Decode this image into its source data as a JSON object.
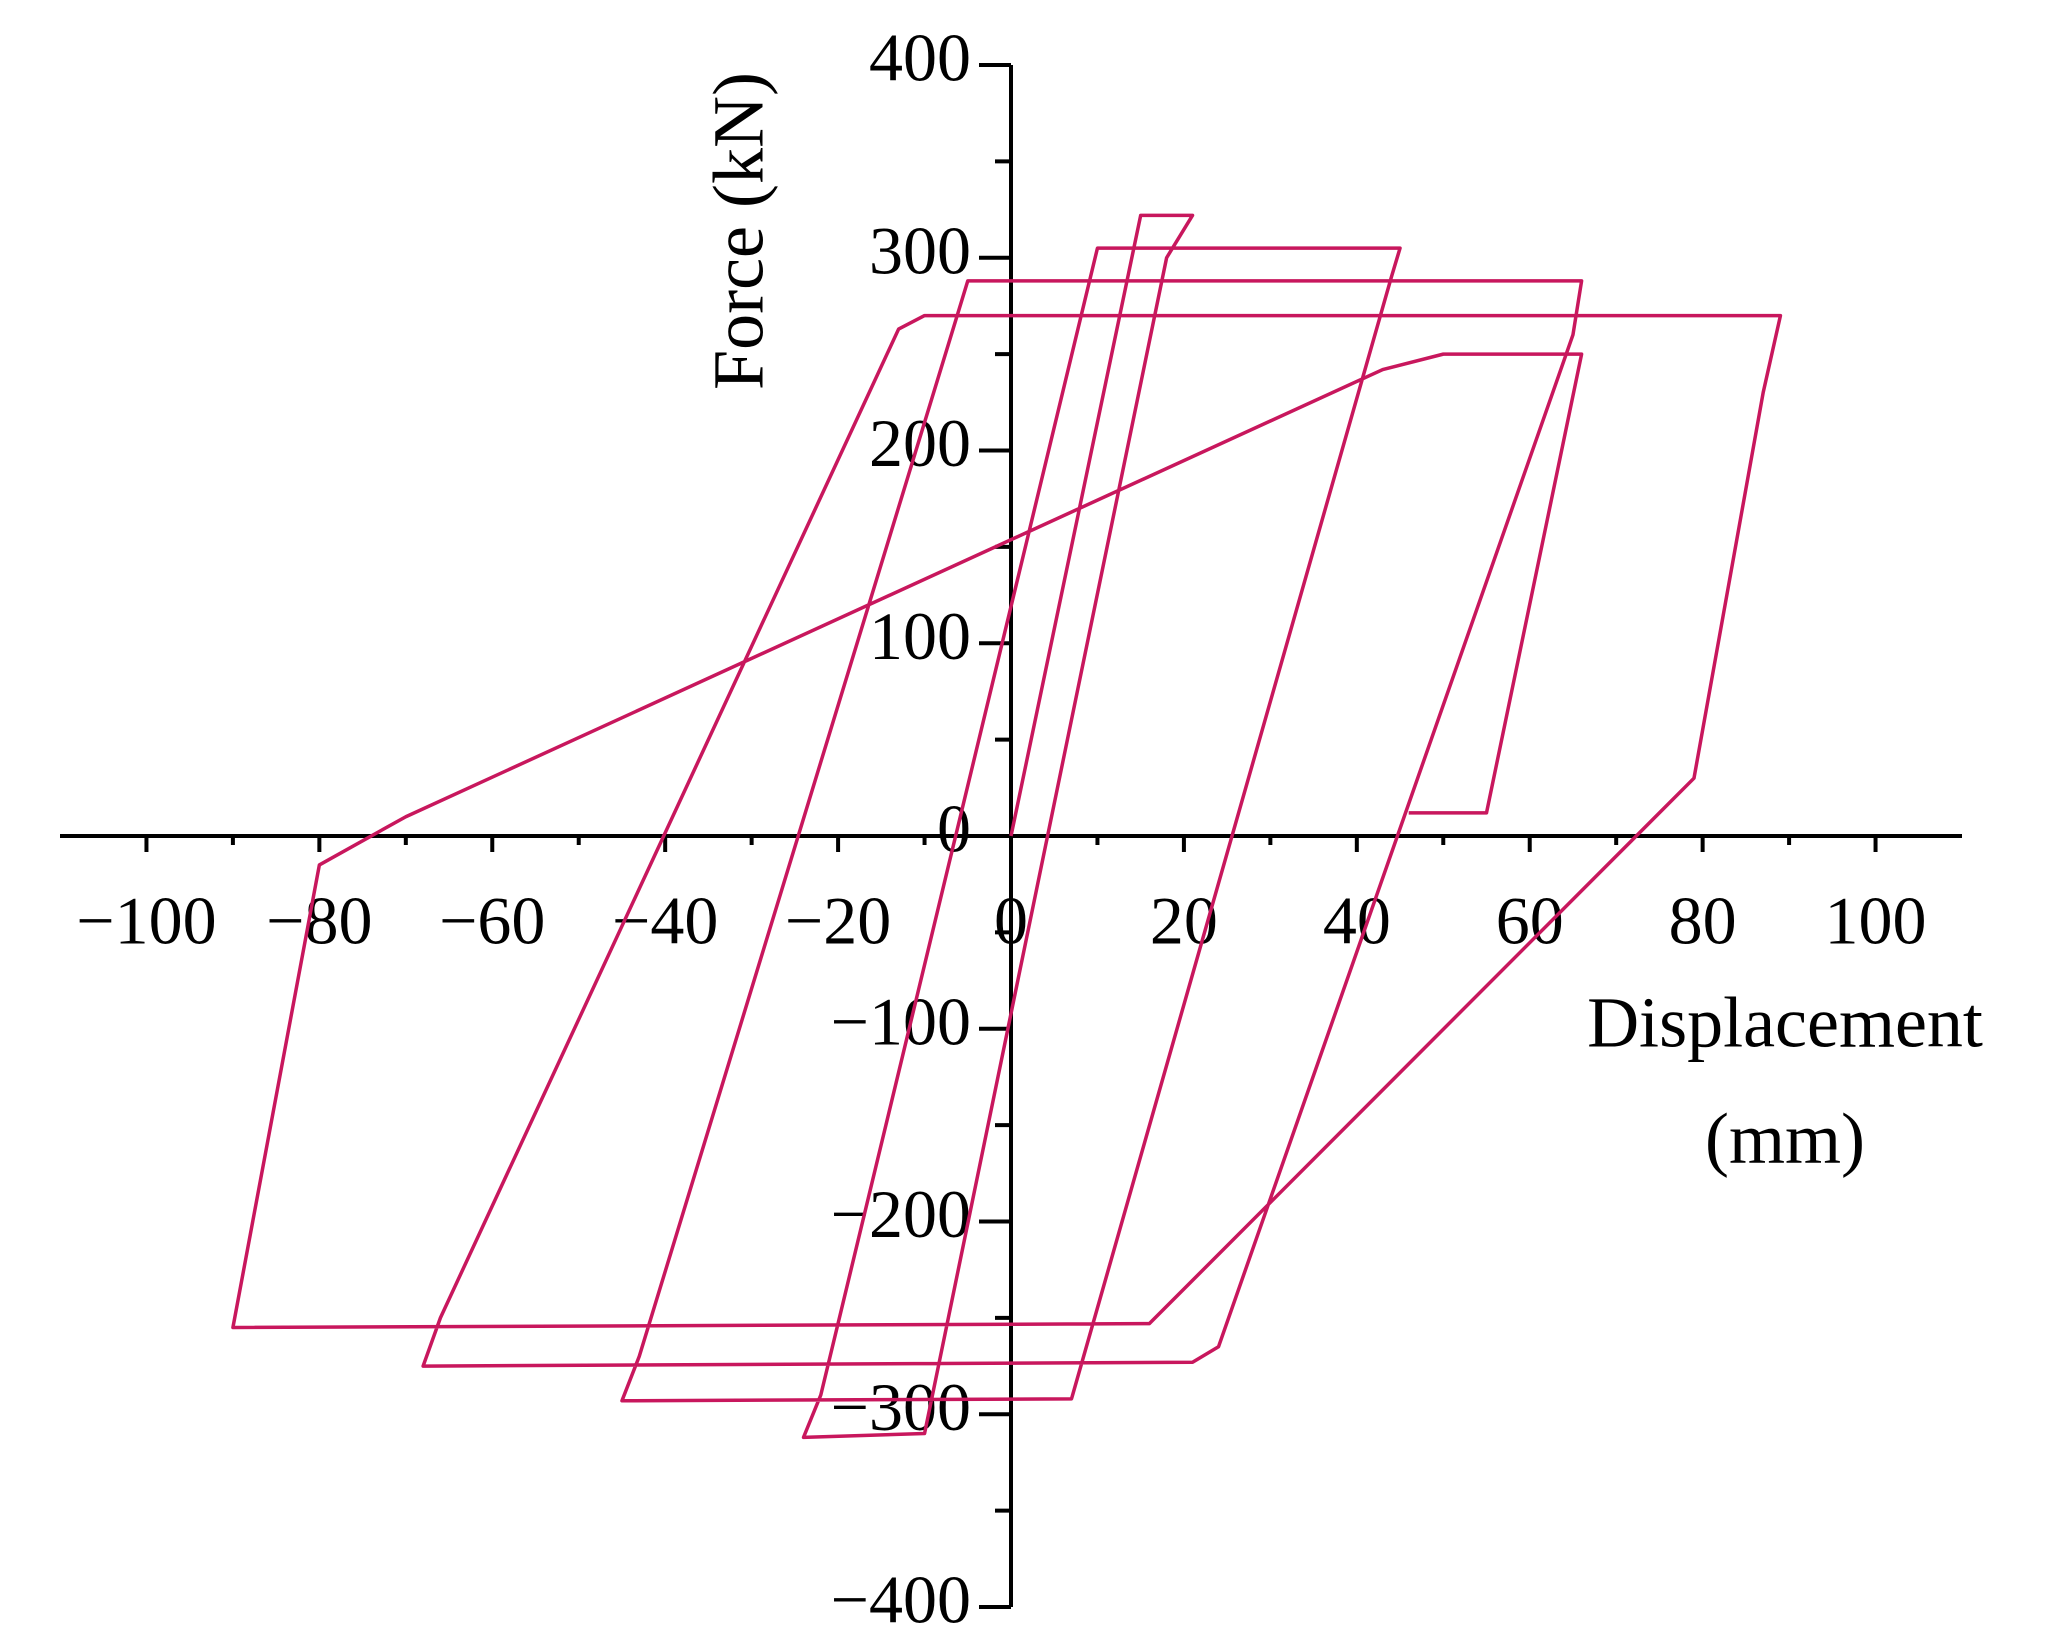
{
  "chart_data": {
    "type": "line",
    "ylabel": "Force (kN)",
    "xlabel_lines": [
      "Displacement",
      "(mm)"
    ],
    "xlim": [
      -110,
      110
    ],
    "ylim": [
      -400,
      400
    ],
    "xticks": [
      {
        "value": -100,
        "label": "−100"
      },
      {
        "value": -80,
        "label": "−80"
      },
      {
        "value": -60,
        "label": "−60"
      },
      {
        "value": -40,
        "label": "−40"
      },
      {
        "value": -20,
        "label": "−20"
      },
      0,
      20,
      40,
      60,
      80,
      100
    ],
    "yticks": [
      {
        "value": -400,
        "label": "−400"
      },
      {
        "value": -300,
        "label": "−300"
      },
      {
        "value": -200,
        "label": "−200"
      },
      {
        "value": -100,
        "label": "−100"
      },
      0,
      100,
      200,
      300,
      400
    ],
    "series": [
      {
        "color": "#c8175d",
        "x": [
          0,
          15,
          21,
          18,
          -10,
          -24,
          -22,
          10,
          45,
          44,
          7,
          -45,
          -43,
          -5,
          66,
          65,
          24,
          21,
          -68,
          -66,
          -13,
          -10,
          89,
          87,
          79,
          16,
          -90,
          -80,
          -70,
          43,
          50,
          65,
          66,
          55,
          46
        ],
        "values": [
          0,
          322,
          322,
          300,
          -310,
          -312,
          -290,
          305,
          305,
          290,
          -292,
          -293,
          -270,
          288,
          288,
          260,
          -265,
          -273,
          -275,
          -250,
          263,
          270,
          270,
          230,
          30,
          -253,
          -255,
          -15,
          10,
          242,
          250,
          250,
          250,
          12,
          12
        ]
      }
    ]
  }
}
